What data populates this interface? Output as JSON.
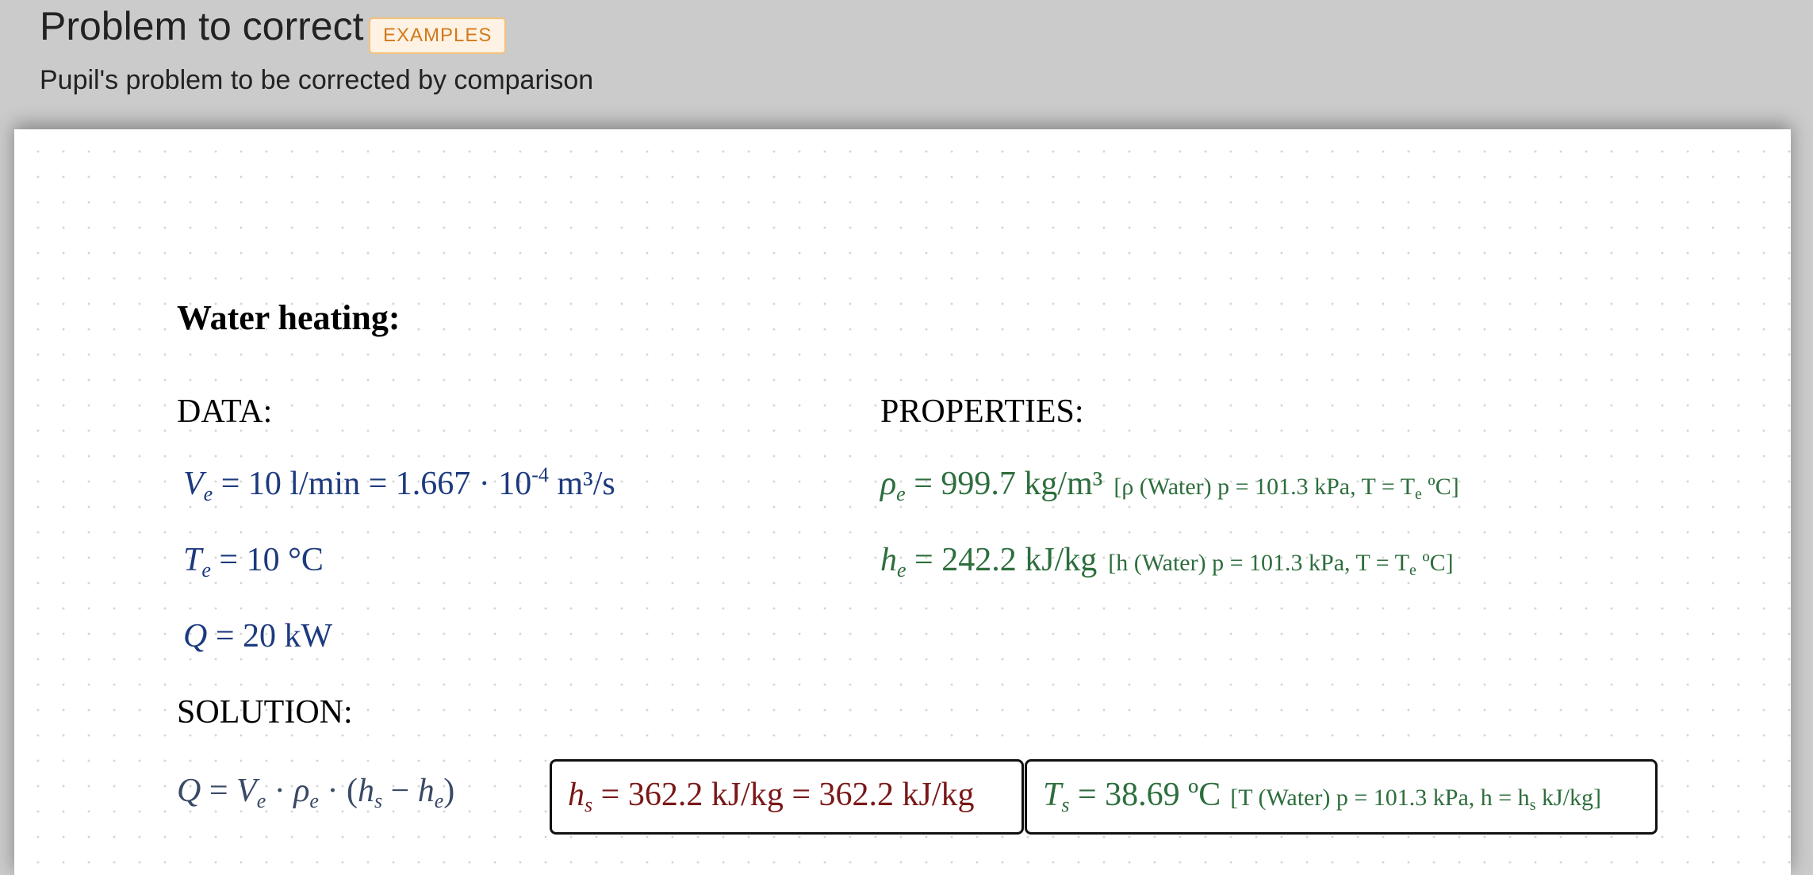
{
  "header": {
    "title": "Problem to correct",
    "badge": "EXAMPLES",
    "subtitle": "Pupil's problem to be corrected by comparison"
  },
  "problem": {
    "heading": "Water heating:",
    "data_label": "DATA:",
    "properties_label": "PROPERTIES:",
    "solution_label": "SOLUTION:",
    "data": {
      "ve": {
        "symbol": "V",
        "sub": "e",
        "value": "10 l/min",
        "converted_mantissa": "1.667 · 10",
        "converted_exp": "-4",
        "converted_unit": "m³/s"
      },
      "te": {
        "symbol": "T",
        "sub": "e",
        "value": "10 °C"
      },
      "q": {
        "symbol": "Q",
        "value": "20 kW"
      }
    },
    "properties": {
      "rho": {
        "symbol": "ρ",
        "sub": "e",
        "value": "999.7 kg/m³",
        "source": "[ρ (Water) p = 101.3 kPa, T = T",
        "source_sub": "e",
        "source_end": " ºC]"
      },
      "h": {
        "symbol": "h",
        "sub": "e",
        "value": "242.2 kJ/kg",
        "source": "[h (Water) p = 101.3 kPa, T = T",
        "source_sub": "e",
        "source_end": " ºC]"
      }
    },
    "solution": {
      "equation": {
        "lhs": "Q",
        "v": "V",
        "v_sub": "e",
        "rho": "ρ",
        "rho_sub": "e",
        "h1": "h",
        "h1_sub": "s",
        "h2": "h",
        "h2_sub": "e"
      },
      "hs_result": {
        "symbol": "h",
        "sub": "s",
        "value": "362.2 kJ/kg",
        "value2": "362.2 kJ/kg"
      },
      "ts_result": {
        "symbol": "T",
        "sub": "s",
        "value": "38.69 ºC",
        "source": "[T (Water) p = 101.3 kPa, h = h",
        "source_sub": "s",
        "source_end": " kJ/kg]"
      }
    }
  },
  "colors": {
    "data": "#1c3a7e",
    "properties": "#2d6e3d",
    "result": "#7a1818",
    "badge": "#d2791c"
  }
}
